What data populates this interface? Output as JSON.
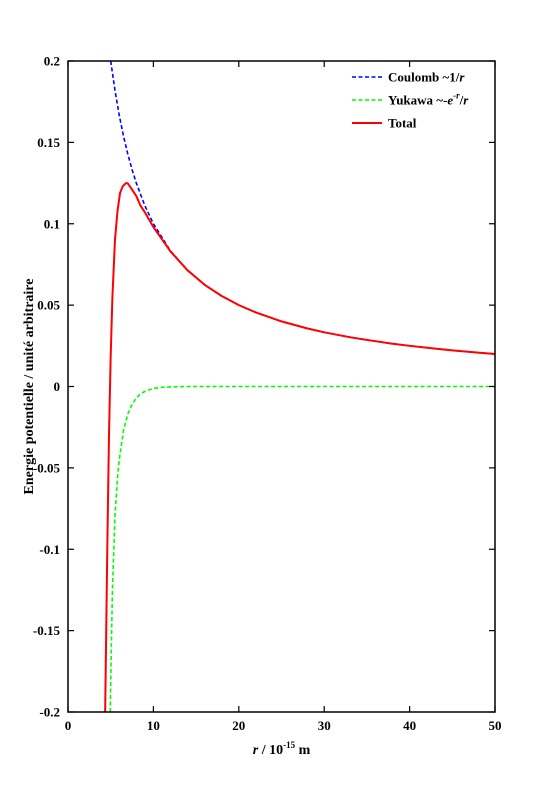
{
  "chart_data": {
    "type": "line",
    "xlabel": {
      "var": "r",
      "rest": " / 10",
      "exp": "-15",
      "unit": " m"
    },
    "ylabel": "Energie potentielle / unité arbitraire",
    "xlim": [
      0,
      50
    ],
    "ylim": [
      -0.2,
      0.2
    ],
    "xticks": [
      0,
      10,
      20,
      30,
      40,
      50
    ],
    "yticks": [
      -0.2,
      -0.15,
      -0.1,
      -0.05,
      0,
      0.05,
      0.1,
      0.15,
      0.2
    ],
    "xtick_labels": [
      "0",
      "10",
      "20",
      "30",
      "40",
      "50"
    ],
    "ytick_labels": [
      "-0.2",
      "-0.15",
      "-0.1",
      "-0.05",
      "0",
      "0.05",
      "0.1",
      "0.15",
      "0.2"
    ],
    "grid": false,
    "legend_position": "top-right",
    "legend": [
      {
        "prefix": "Coulomb ~1/",
        "var": "r",
        "exp": "",
        "suffix": "",
        "var2": ""
      },
      {
        "prefix": "Yukawa ~-",
        "var": "e",
        "exp": "-r",
        "suffix": "/",
        "var2": "r"
      },
      {
        "prefix": "Total",
        "var": "",
        "exp": "",
        "suffix": "",
        "var2": ""
      }
    ],
    "series": [
      {
        "name": "Coulomb ~1/r",
        "color": "#0000ff",
        "dash": "dashed",
        "points": [
          [
            5.0,
            0.2
          ],
          [
            5.5,
            0.182
          ],
          [
            6,
            0.1667
          ],
          [
            6.5,
            0.1538
          ],
          [
            7,
            0.1429
          ],
          [
            7.5,
            0.1333
          ],
          [
            8,
            0.125
          ],
          [
            9,
            0.1111
          ],
          [
            10,
            0.1
          ],
          [
            12,
            0.0833
          ],
          [
            14,
            0.0714
          ],
          [
            16,
            0.0625
          ],
          [
            18,
            0.0556
          ],
          [
            20,
            0.05
          ],
          [
            22,
            0.0455
          ],
          [
            25,
            0.04
          ],
          [
            28,
            0.0357
          ],
          [
            30,
            0.0333
          ],
          [
            33,
            0.0303
          ],
          [
            35,
            0.0286
          ],
          [
            38,
            0.0263
          ],
          [
            40,
            0.025
          ],
          [
            43,
            0.0233
          ],
          [
            45,
            0.0222
          ],
          [
            48,
            0.0208
          ],
          [
            50,
            0.02
          ]
        ]
      },
      {
        "name": "Yukawa ~-e^-r/r",
        "color": "#00ff00",
        "dash": "dashed",
        "points": [
          [
            4.95,
            -0.2
          ],
          [
            5.0,
            -0.181
          ],
          [
            5.2,
            -0.125
          ],
          [
            5.5,
            -0.08
          ],
          [
            5.8,
            -0.056
          ],
          [
            6,
            -0.045
          ],
          [
            6.5,
            -0.027
          ],
          [
            7,
            -0.017
          ],
          [
            7.5,
            -0.011
          ],
          [
            8,
            -0.007
          ],
          [
            8.5,
            -0.0045
          ],
          [
            9,
            -0.003
          ],
          [
            10,
            -0.0012
          ],
          [
            11,
            -0.0005
          ],
          [
            12,
            -0.0002
          ],
          [
            14,
            0
          ],
          [
            20,
            0
          ],
          [
            30,
            0
          ],
          [
            40,
            0
          ],
          [
            50,
            0
          ]
        ]
      },
      {
        "name": "Total",
        "color": "#ff0000",
        "dash": "solid",
        "points": [
          [
            4.35,
            -0.2
          ],
          [
            4.6,
            -0.1
          ],
          [
            4.8,
            -0.03
          ],
          [
            5.0,
            0.019
          ],
          [
            5.2,
            0.055
          ],
          [
            5.5,
            0.09
          ],
          [
            5.8,
            0.108
          ],
          [
            6.1,
            0.119
          ],
          [
            6.4,
            0.123
          ],
          [
            6.8,
            0.125
          ],
          [
            7.0,
            0.1248
          ],
          [
            7.5,
            0.121
          ],
          [
            8,
            0.117
          ],
          [
            8.5,
            0.111
          ],
          [
            9,
            0.107
          ],
          [
            10,
            0.098
          ],
          [
            12,
            0.083
          ],
          [
            14,
            0.0714
          ],
          [
            16,
            0.0625
          ],
          [
            18,
            0.0556
          ],
          [
            20,
            0.05
          ],
          [
            22,
            0.0455
          ],
          [
            25,
            0.04
          ],
          [
            28,
            0.0357
          ],
          [
            30,
            0.0333
          ],
          [
            33,
            0.0303
          ],
          [
            35,
            0.0286
          ],
          [
            38,
            0.0263
          ],
          [
            40,
            0.025
          ],
          [
            43,
            0.0233
          ],
          [
            45,
            0.0222
          ],
          [
            48,
            0.0208
          ],
          [
            50,
            0.02
          ]
        ]
      }
    ]
  }
}
